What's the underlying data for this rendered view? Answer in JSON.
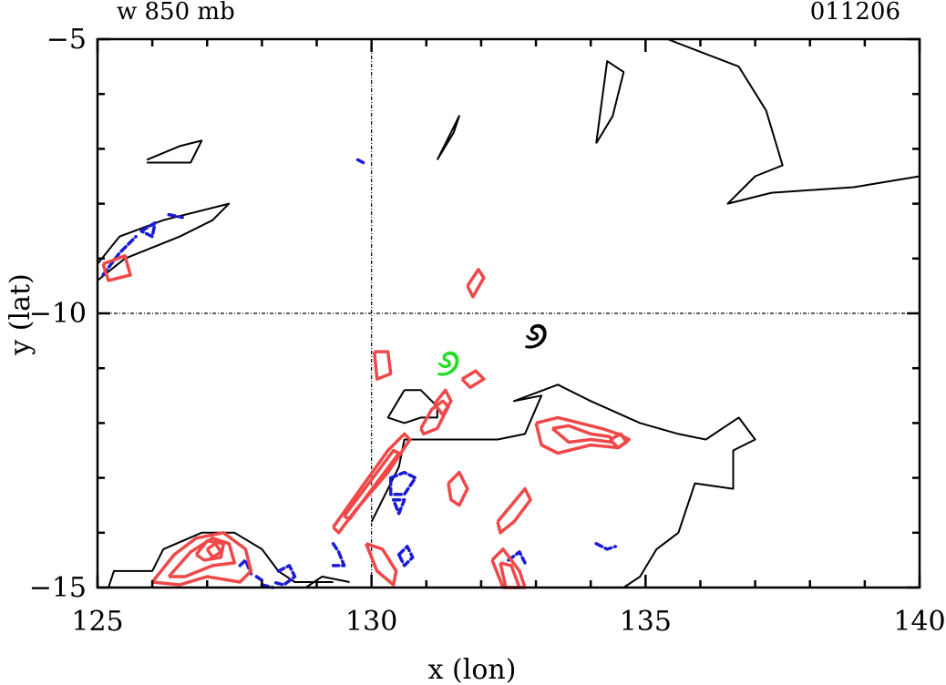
{
  "chart_data": {
    "type": "contour",
    "title_left": "w 850 mb",
    "title_right": "011206",
    "xlabel": "x (lon)",
    "ylabel": "y (lat)",
    "xlim": [
      125,
      140
    ],
    "ylim": [
      -15,
      -5
    ],
    "xticks": [
      125,
      130,
      135,
      140
    ],
    "xtick_labels": [
      "125",
      "130",
      "135",
      "140"
    ],
    "yticks": [
      -5,
      -10,
      -15
    ],
    "ytick_labels": [
      "−5",
      "−10",
      "−15"
    ],
    "grid": false,
    "reference_lines": {
      "x": 130,
      "y": -10
    },
    "colors": {
      "coastline": "#000000",
      "positive": "#f04848",
      "negative": "#1a1ad8",
      "marker_black": "#000000",
      "marker_green": "#22dd22"
    },
    "markers": [
      {
        "name": "cyclone-symbol-black",
        "symbol": "୬",
        "x": 133.0,
        "y": -10.4,
        "color": "#000000"
      },
      {
        "name": "cyclone-symbol-green",
        "symbol": "୬",
        "x": 131.4,
        "y": -10.9,
        "color": "#22dd22"
      }
    ],
    "coastlines": [
      [
        [
          125.2,
          -15.0
        ],
        [
          125.3,
          -14.7
        ],
        [
          126.0,
          -14.7
        ],
        [
          126.2,
          -14.3
        ],
        [
          126.9,
          -14.0
        ],
        [
          127.5,
          -14.0
        ],
        [
          128.0,
          -14.3
        ],
        [
          128.3,
          -14.7
        ],
        [
          128.6,
          -14.9
        ],
        [
          129.3,
          -14.9
        ]
      ],
      [
        [
          125.0,
          -9.1
        ],
        [
          125.4,
          -8.6
        ],
        [
          126.2,
          -8.3
        ],
        [
          127.4,
          -8.0
        ],
        [
          127.1,
          -8.3
        ],
        [
          126.5,
          -8.6
        ],
        [
          125.5,
          -9.0
        ],
        [
          125.0,
          -9.4
        ]
      ],
      [
        [
          125.9,
          -7.2
        ],
        [
          126.5,
          -6.95
        ],
        [
          126.9,
          -6.85
        ],
        [
          126.7,
          -7.25
        ],
        [
          125.9,
          -7.25
        ]
      ],
      [
        [
          131.2,
          -7.2
        ],
        [
          131.5,
          -6.7
        ],
        [
          131.6,
          -6.4
        ],
        [
          131.5,
          -6.6
        ],
        [
          131.2,
          -7.2
        ]
      ],
      [
        [
          134.1,
          -6.9
        ],
        [
          134.3,
          -5.4
        ],
        [
          134.6,
          -5.6
        ],
        [
          134.4,
          -6.4
        ],
        [
          134.1,
          -6.9
        ]
      ],
      [
        [
          135.4,
          -5.0
        ],
        [
          136.7,
          -5.5
        ],
        [
          137.2,
          -6.3
        ],
        [
          137.5,
          -7.3
        ],
        [
          137.0,
          -7.5
        ],
        [
          136.5,
          -8.0
        ],
        [
          137.3,
          -7.8
        ],
        [
          138.8,
          -7.7
        ],
        [
          140.0,
          -7.5
        ]
      ],
      [
        [
          130.0,
          -13.8
        ],
        [
          130.5,
          -12.8
        ],
        [
          130.6,
          -12.3
        ],
        [
          131.5,
          -12.3
        ],
        [
          132.3,
          -12.3
        ],
        [
          132.8,
          -12.2
        ],
        [
          133.1,
          -11.5
        ],
        [
          132.6,
          -11.6
        ],
        [
          133.4,
          -11.3
        ],
        [
          134.0,
          -11.6
        ],
        [
          134.9,
          -12.0
        ],
        [
          135.6,
          -12.2
        ],
        [
          136.1,
          -12.3
        ],
        [
          136.4,
          -12.1
        ],
        [
          136.7,
          -11.9
        ],
        [
          137.0,
          -12.3
        ],
        [
          136.6,
          -12.5
        ],
        [
          136.6,
          -13.2
        ],
        [
          135.9,
          -13.1
        ],
        [
          135.6,
          -14.0
        ],
        [
          135.2,
          -14.3
        ],
        [
          134.9,
          -14.8
        ],
        [
          134.6,
          -15.0
        ]
      ],
      [
        [
          130.6,
          -11.4
        ],
        [
          130.9,
          -11.4
        ],
        [
          131.0,
          -11.5
        ],
        [
          131.2,
          -11.7
        ],
        [
          131.2,
          -11.9
        ],
        [
          130.9,
          -11.9
        ],
        [
          130.6,
          -12.0
        ],
        [
          130.3,
          -11.9
        ],
        [
          130.6,
          -11.4
        ]
      ],
      [
        [
          128.8,
          -15.0
        ],
        [
          129.1,
          -14.8
        ],
        [
          129.6,
          -14.9
        ]
      ]
    ],
    "positive_contours": [
      [
        [
          125.1,
          -9.1
        ],
        [
          125.5,
          -8.95
        ],
        [
          125.6,
          -9.3
        ],
        [
          125.2,
          -9.4
        ],
        [
          125.1,
          -9.1
        ]
      ],
      [
        [
          131.75,
          -9.5
        ],
        [
          131.95,
          -9.2
        ],
        [
          132.05,
          -9.35
        ],
        [
          131.85,
          -9.7
        ],
        [
          131.75,
          -9.5
        ]
      ],
      [
        [
          130.05,
          -10.7
        ],
        [
          130.3,
          -10.7
        ],
        [
          130.35,
          -11.1
        ],
        [
          130.1,
          -11.2
        ],
        [
          130.05,
          -10.7
        ]
      ],
      [
        [
          131.65,
          -11.2
        ],
        [
          131.9,
          -11.05
        ],
        [
          132.05,
          -11.2
        ],
        [
          131.8,
          -11.35
        ],
        [
          131.65,
          -11.2
        ]
      ],
      [
        [
          130.9,
          -12.1
        ],
        [
          131.1,
          -11.75
        ],
        [
          131.3,
          -11.6
        ],
        [
          131.4,
          -11.7
        ],
        [
          131.2,
          -12.1
        ],
        [
          130.95,
          -12.2
        ],
        [
          130.9,
          -12.1
        ]
      ],
      [
        [
          131.15,
          -11.65
        ],
        [
          131.35,
          -11.4
        ],
        [
          131.45,
          -11.6
        ],
        [
          131.3,
          -11.85
        ],
        [
          131.15,
          -11.65
        ]
      ],
      [
        [
          129.3,
          -13.9
        ],
        [
          129.8,
          -13.2
        ],
        [
          130.3,
          -12.5
        ],
        [
          130.6,
          -12.2
        ],
        [
          130.7,
          -12.3
        ],
        [
          130.3,
          -12.9
        ],
        [
          129.7,
          -13.6
        ],
        [
          129.4,
          -14.0
        ],
        [
          129.3,
          -13.9
        ]
      ],
      [
        [
          129.5,
          -13.7
        ],
        [
          129.95,
          -13.1
        ],
        [
          130.4,
          -12.5
        ],
        [
          130.5,
          -12.55
        ],
        [
          130.05,
          -13.15
        ],
        [
          129.6,
          -13.75
        ],
        [
          129.5,
          -13.7
        ]
      ],
      [
        [
          129.9,
          -14.2
        ],
        [
          130.2,
          -14.3
        ],
        [
          130.45,
          -14.7
        ],
        [
          130.4,
          -14.95
        ],
        [
          130.1,
          -14.7
        ],
        [
          129.9,
          -14.2
        ]
      ],
      [
        [
          131.4,
          -13.1
        ],
        [
          131.6,
          -12.9
        ],
        [
          131.75,
          -13.2
        ],
        [
          131.6,
          -13.5
        ],
        [
          131.45,
          -13.4
        ],
        [
          131.4,
          -13.1
        ]
      ],
      [
        [
          132.3,
          -13.8
        ],
        [
          132.55,
          -13.5
        ],
        [
          132.8,
          -13.2
        ],
        [
          132.9,
          -13.4
        ],
        [
          132.6,
          -13.8
        ],
        [
          132.35,
          -14.0
        ],
        [
          132.3,
          -13.8
        ]
      ],
      [
        [
          132.2,
          -14.5
        ],
        [
          132.4,
          -14.3
        ],
        [
          132.7,
          -14.7
        ],
        [
          132.8,
          -15.0
        ],
        [
          132.4,
          -15.0
        ],
        [
          132.2,
          -14.5
        ]
      ],
      [
        [
          132.35,
          -14.55
        ],
        [
          132.55,
          -14.6
        ],
        [
          132.7,
          -15.0
        ],
        [
          132.45,
          -15.0
        ],
        [
          132.35,
          -14.55
        ]
      ],
      [
        [
          133.0,
          -12.0
        ],
        [
          133.4,
          -11.9
        ],
        [
          133.8,
          -12.0
        ],
        [
          134.2,
          -12.1
        ],
        [
          134.5,
          -12.2
        ],
        [
          134.7,
          -12.3
        ],
        [
          134.5,
          -12.45
        ],
        [
          134.0,
          -12.4
        ],
        [
          133.6,
          -12.5
        ],
        [
          133.4,
          -12.55
        ],
        [
          133.1,
          -12.4
        ],
        [
          133.0,
          -12.0
        ]
      ],
      [
        [
          133.3,
          -12.1
        ],
        [
          133.6,
          -12.05
        ],
        [
          134.0,
          -12.2
        ],
        [
          134.35,
          -12.25
        ],
        [
          134.4,
          -12.35
        ],
        [
          134.0,
          -12.3
        ],
        [
          133.6,
          -12.35
        ],
        [
          133.3,
          -12.1
        ]
      ],
      [
        [
          134.35,
          -12.3
        ],
        [
          134.55,
          -12.2
        ],
        [
          134.65,
          -12.35
        ],
        [
          134.5,
          -12.45
        ],
        [
          134.35,
          -12.3
        ]
      ],
      [
        [
          126.0,
          -14.9
        ],
        [
          126.4,
          -14.4
        ],
        [
          126.8,
          -14.1
        ],
        [
          127.3,
          -14.0
        ],
        [
          127.7,
          -14.3
        ],
        [
          127.8,
          -14.7
        ],
        [
          127.6,
          -14.9
        ],
        [
          127.0,
          -14.8
        ],
        [
          126.5,
          -14.95
        ],
        [
          126.0,
          -14.9
        ]
      ],
      [
        [
          126.3,
          -14.8
        ],
        [
          126.7,
          -14.35
        ],
        [
          127.1,
          -14.1
        ],
        [
          127.4,
          -14.2
        ],
        [
          127.5,
          -14.55
        ],
        [
          127.1,
          -14.6
        ],
        [
          126.6,
          -14.8
        ],
        [
          126.3,
          -14.8
        ]
      ],
      [
        [
          126.8,
          -14.4
        ],
        [
          127.0,
          -14.15
        ],
        [
          127.3,
          -14.2
        ],
        [
          127.25,
          -14.45
        ],
        [
          126.95,
          -14.5
        ],
        [
          126.8,
          -14.4
        ]
      ],
      [
        [
          127.0,
          -14.3
        ],
        [
          127.15,
          -14.2
        ],
        [
          127.25,
          -14.35
        ],
        [
          127.1,
          -14.45
        ],
        [
          127.0,
          -14.3
        ]
      ]
    ],
    "negative_contours": [
      [
        [
          125.1,
          -9.3
        ],
        [
          125.4,
          -8.9
        ],
        [
          125.7,
          -8.6
        ]
      ],
      [
        [
          125.8,
          -8.5
        ],
        [
          126.05,
          -8.35
        ],
        [
          126.0,
          -8.6
        ],
        [
          125.8,
          -8.5
        ]
      ],
      [
        [
          126.3,
          -8.2
        ],
        [
          126.55,
          -8.25
        ]
      ],
      [
        [
          129.75,
          -7.2
        ],
        [
          129.85,
          -7.25
        ]
      ],
      [
        [
          130.35,
          -13.0
        ],
        [
          130.6,
          -12.9
        ],
        [
          130.8,
          -13.0
        ],
        [
          130.6,
          -13.3
        ],
        [
          130.35,
          -13.3
        ],
        [
          130.35,
          -13.0
        ]
      ],
      [
        [
          130.4,
          -13.4
        ],
        [
          130.6,
          -13.4
        ],
        [
          130.5,
          -13.65
        ],
        [
          130.4,
          -13.4
        ]
      ],
      [
        [
          130.5,
          -14.4
        ],
        [
          130.65,
          -14.25
        ],
        [
          130.75,
          -14.45
        ],
        [
          130.6,
          -14.6
        ],
        [
          130.5,
          -14.4
        ]
      ],
      [
        [
          129.3,
          -14.2
        ],
        [
          129.4,
          -14.35
        ],
        [
          129.5,
          -14.6
        ],
        [
          129.3,
          -14.6
        ]
      ],
      [
        [
          127.6,
          -14.6
        ],
        [
          127.7,
          -14.5
        ],
        [
          127.8,
          -14.75
        ]
      ],
      [
        [
          128.3,
          -14.7
        ],
        [
          128.5,
          -14.6
        ],
        [
          128.6,
          -14.8
        ],
        [
          128.4,
          -14.95
        ],
        [
          128.2,
          -14.9
        ]
      ],
      [
        [
          128.0,
          -14.95
        ],
        [
          128.2,
          -15.0
        ]
      ],
      [
        [
          132.5,
          -14.5
        ],
        [
          132.7,
          -14.35
        ],
        [
          132.8,
          -14.55
        ]
      ],
      [
        [
          134.1,
          -14.2
        ],
        [
          134.3,
          -14.3
        ],
        [
          134.45,
          -14.25
        ]
      ],
      [
        [
          127.9,
          -14.8
        ],
        [
          128.05,
          -14.9
        ]
      ]
    ]
  }
}
